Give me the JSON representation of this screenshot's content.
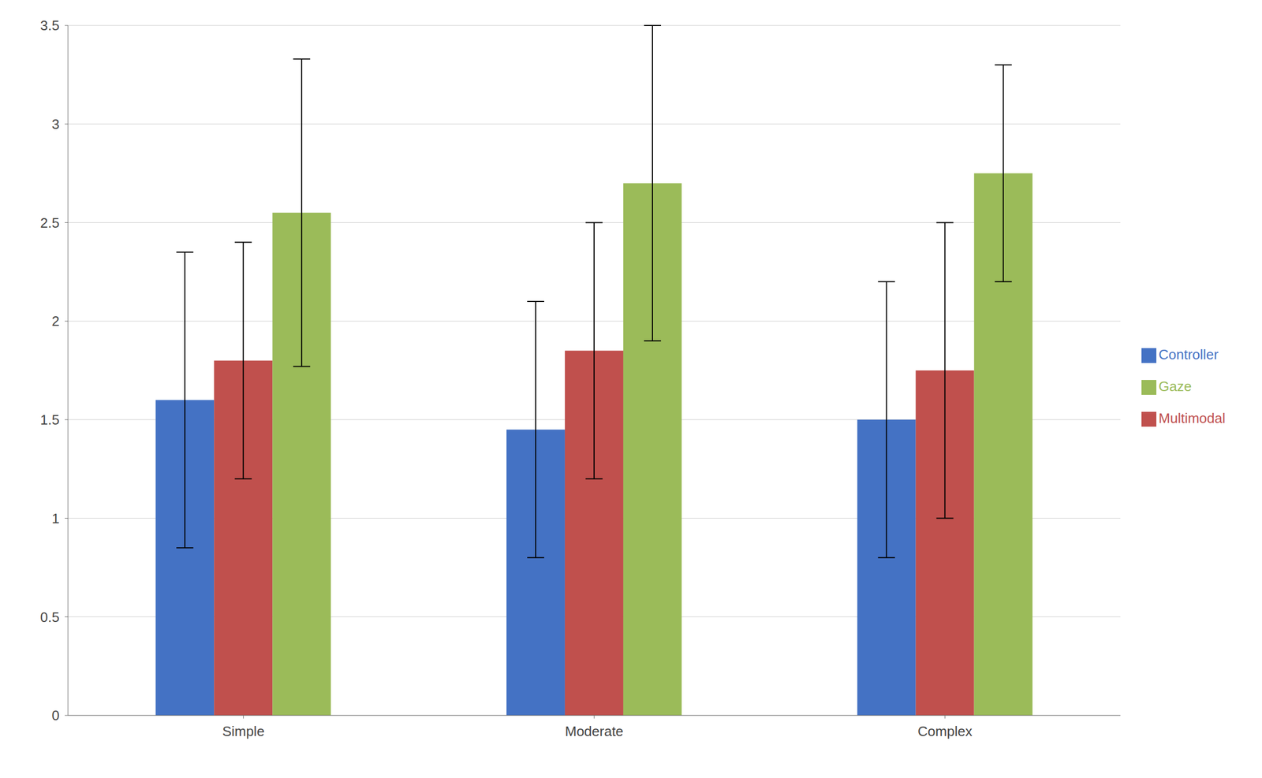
{
  "chart_data": {
    "type": "bar",
    "categories": [
      "Simple",
      "Moderate",
      "Complex"
    ],
    "series": [
      {
        "name": "Controller",
        "color": "#4472C4",
        "values": [
          1.6,
          1.45,
          1.5
        ],
        "errors": [
          0.75,
          0.65,
          0.7
        ]
      },
      {
        "name": "Multimodal",
        "color": "#C0504D",
        "values": [
          1.8,
          1.85,
          1.75
        ],
        "errors": [
          0.6,
          0.65,
          0.75
        ]
      },
      {
        "name": "Gaze",
        "color": "#9BBB59",
        "values": [
          2.55,
          2.7,
          2.75
        ],
        "errors": [
          0.78,
          0.8,
          0.55
        ]
      }
    ],
    "ylim": [
      0,
      3.5
    ],
    "yticks": [
      0,
      0.5,
      1,
      1.5,
      2,
      2.5,
      3,
      3.5
    ],
    "grid": true,
    "legend": "right"
  }
}
